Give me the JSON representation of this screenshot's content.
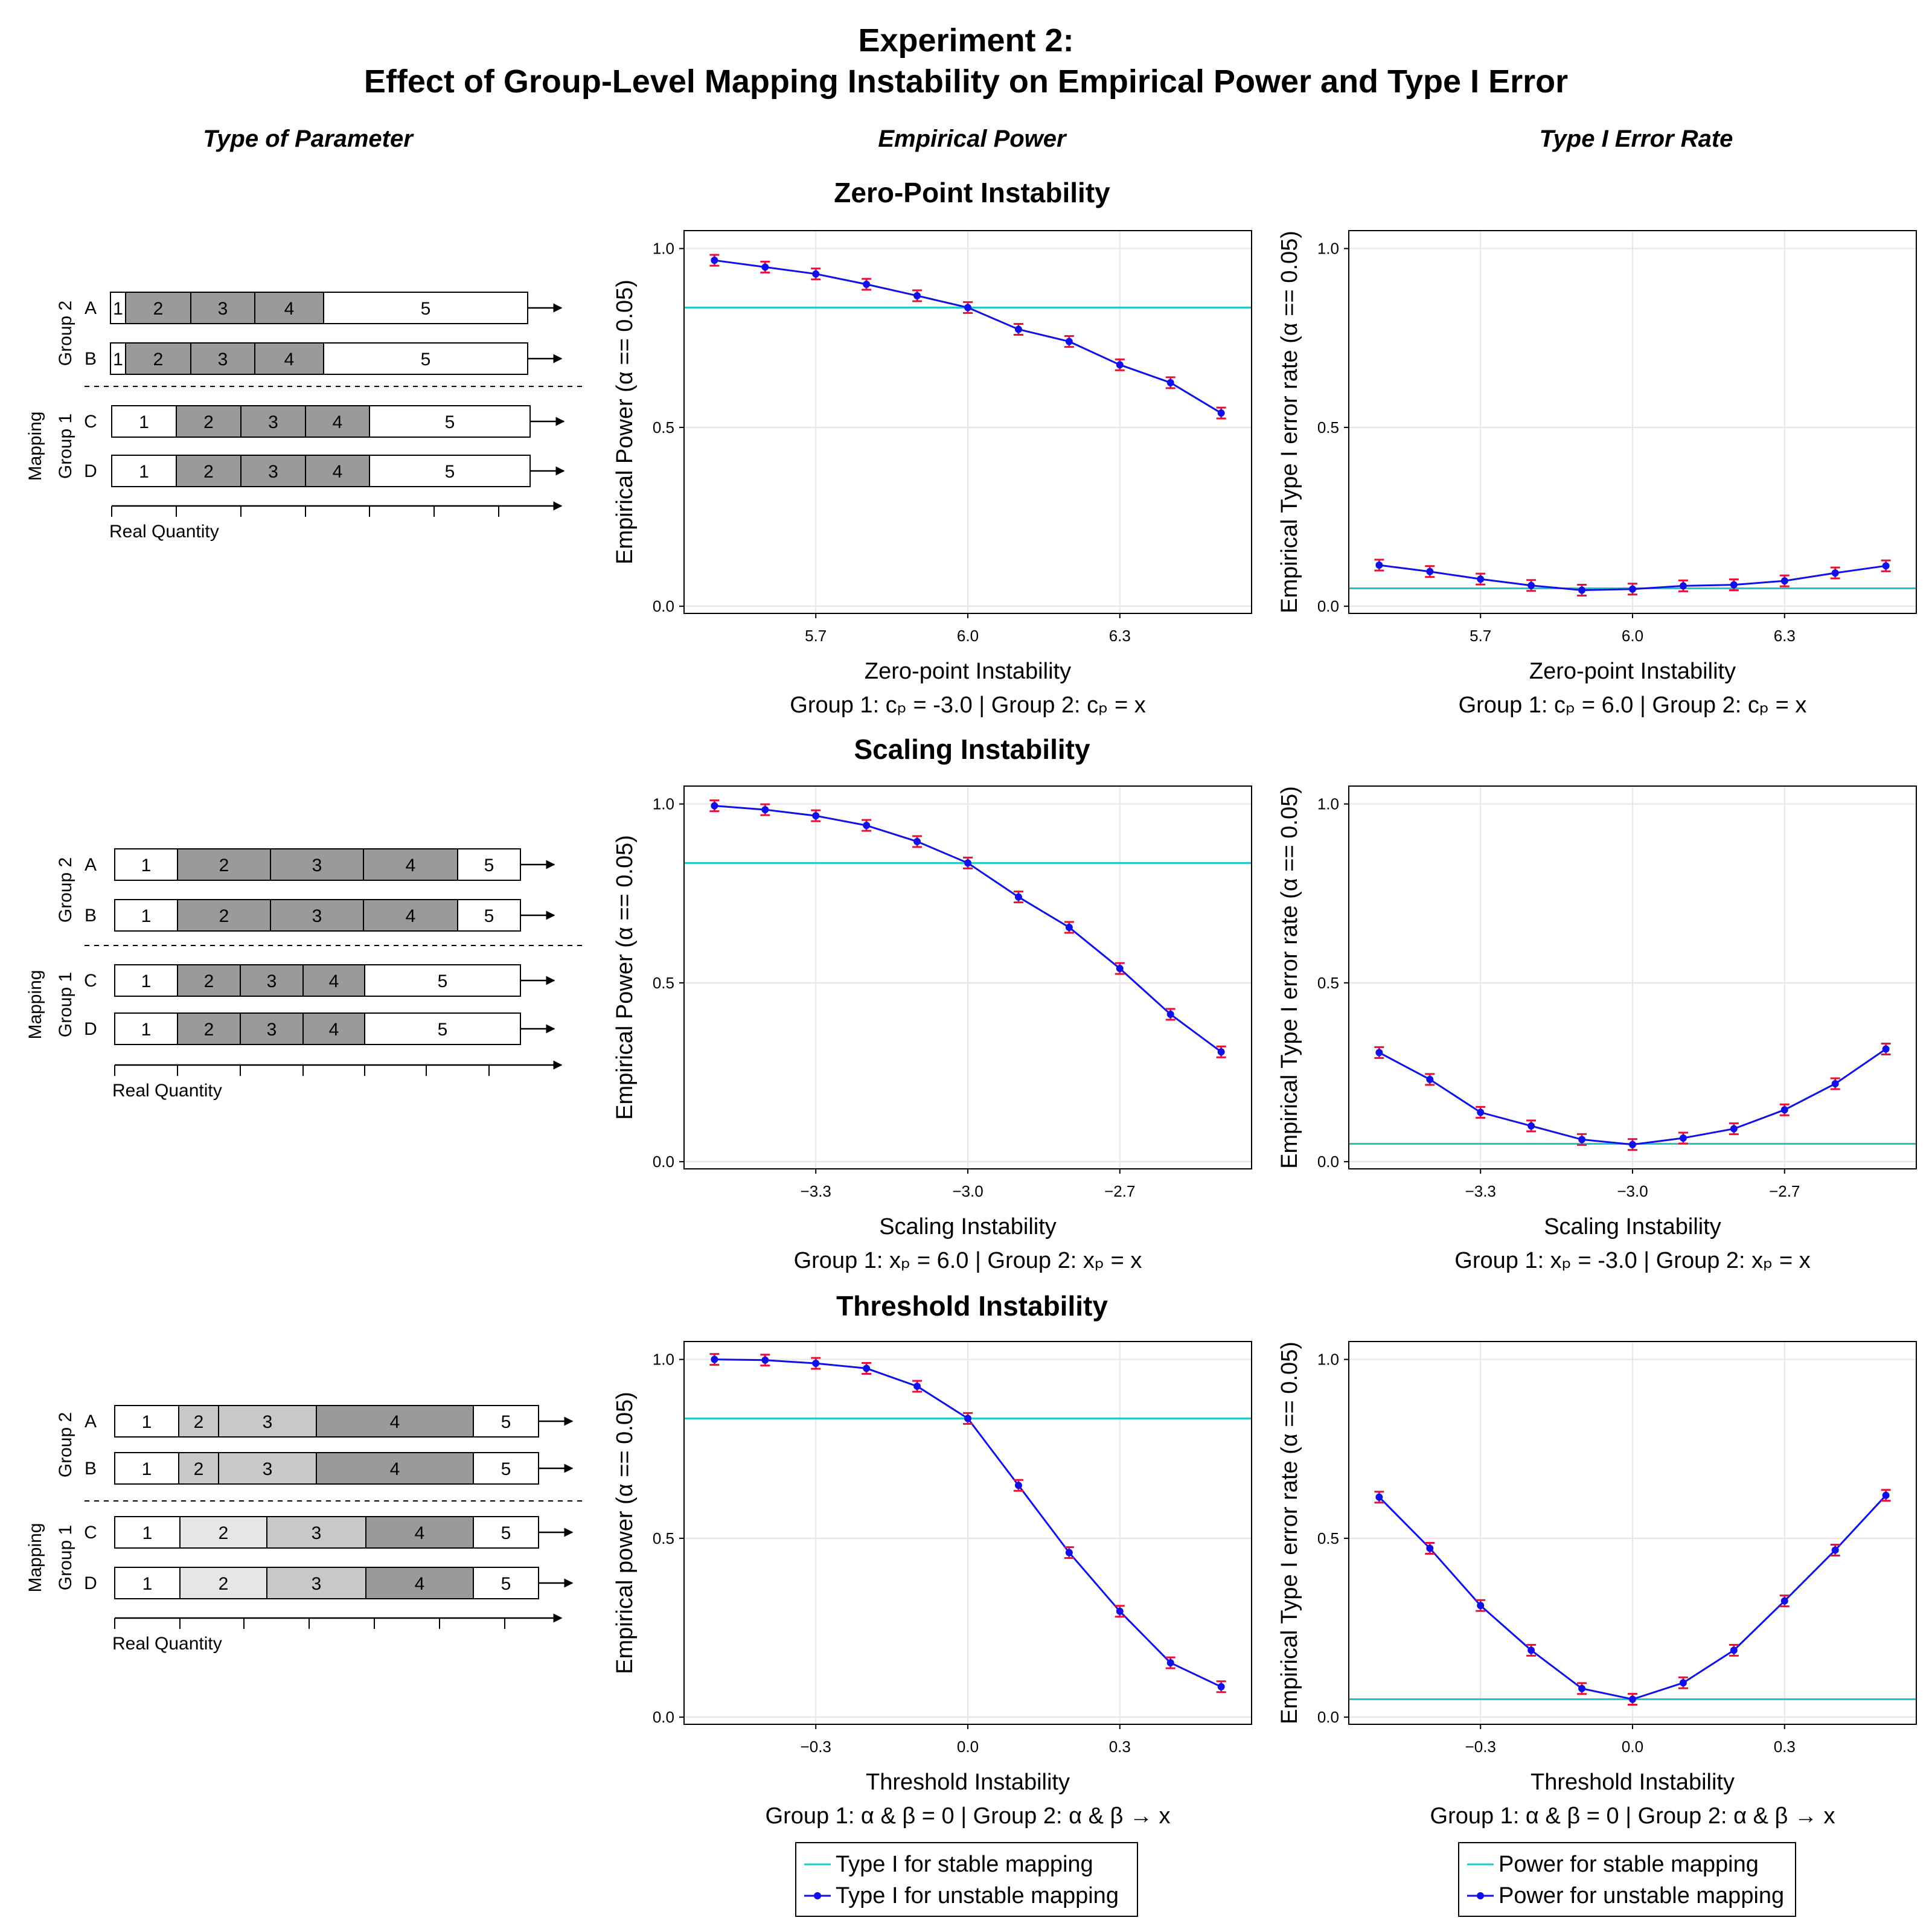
{
  "title": {
    "line1": "Experiment 2:",
    "line2": "Effect of Group-Level Mapping Instability on Empirical Power and Type I Error"
  },
  "column_headers": {
    "type": "Type of Parameter",
    "power": "Empirical Power",
    "type1": "Type I Error Rate"
  },
  "colors": {
    "stable_line": "#1ec8c8",
    "unstable_line": "#1010e8",
    "marker": "#1010e8",
    "errorbar": "#e8103a",
    "dark_category": "#9a9a9a",
    "mid_category": "#c8c8c8",
    "light_category": "#e6e6e6"
  },
  "rows": [
    {
      "row_title": "Zero-Point Instability",
      "diagram": {
        "group_top_label": "Group 2",
        "group_bottom_label": "Mapping\nGroup 1",
        "bar_labels": [
          "A",
          "B",
          "C",
          "D"
        ],
        "axis_label": "Real Quantity",
        "category_numbers": [
          "1",
          "2",
          "3",
          "4",
          "5"
        ]
      },
      "power_axis_label": "Empirical Power (α == 0.05)",
      "power_xlabel": "Zero-point Instability",
      "power_subtitle": "Group 1: cₚ = -3.0 | Group 2: cₚ = x",
      "type1_axis_label": "Empirical Type I error rate (α == 0.05)",
      "type1_xlabel": "Zero-point Instability",
      "type1_subtitle": "Group 1: cₚ = 6.0 | Group 2: cₚ = x"
    },
    {
      "row_title": "Scaling Instability",
      "diagram": {
        "group_top_label": "Group 2",
        "group_bottom_label": "Mapping\nGroup 1",
        "bar_labels": [
          "A",
          "B",
          "C",
          "D"
        ],
        "axis_label": "Real Quantity",
        "category_numbers": [
          "1",
          "2",
          "3",
          "4",
          "5"
        ]
      },
      "power_axis_label": "Empirical Power (α == 0.05)",
      "power_xlabel": "Scaling Instability",
      "power_subtitle": "Group 1: xₚ = 6.0 | Group 2: xₚ = x",
      "type1_axis_label": "Empirical Type I error rate (α == 0.05)",
      "type1_xlabel": "Scaling Instability",
      "type1_subtitle": "Group 1: xₚ = -3.0 | Group 2: xₚ = x"
    },
    {
      "row_title": "Threshold Instability",
      "diagram": {
        "group_top_label": "Group 2",
        "group_bottom_label": "Mapping\nGroup 1",
        "bar_labels": [
          "A",
          "B",
          "C",
          "D"
        ],
        "axis_label": "Real Quantity",
        "category_numbers": [
          "1",
          "2",
          "3",
          "4",
          "5"
        ]
      },
      "power_axis_label": "Empirical power (α == 0.05)",
      "power_xlabel": "Threshold Instability",
      "power_subtitle": "Group 1: α & β = 0 | Group 2: α & β → x",
      "type1_axis_label": "Empirical Type I error rate (α == 0.05)",
      "type1_xlabel": "Threshold Instability",
      "type1_subtitle": "Group 1: α & β = 0 | Group 2: α & β → x"
    }
  ],
  "legends": {
    "power": [
      "Type I for stable mapping",
      "Type I for unstable mapping"
    ],
    "type1": [
      "Power for stable mapping",
      "Power for unstable mapping"
    ]
  },
  "chart_data": [
    {
      "type": "line",
      "panel": "zero-point-power",
      "x": [
        5.5,
        5.6,
        5.7,
        5.8,
        5.9,
        6.0,
        6.1,
        6.2,
        6.3,
        6.4,
        6.5
      ],
      "series": [
        {
          "values": [
            0.967,
            0.948,
            0.929,
            0.9,
            0.868,
            0.835,
            0.774,
            0.74,
            0.675,
            0.625,
            0.54
          ]
        }
      ],
      "reference_line": 0.835,
      "xlim": [
        5.44,
        6.56
      ],
      "ylim": [
        -0.02,
        1.05
      ],
      "xticks": [
        5.7,
        6.0,
        6.3
      ],
      "xtick_labels": [
        "5.7",
        "6.0",
        "6.3"
      ],
      "yticks": [
        0.0,
        0.5,
        1.0
      ],
      "ytick_labels": [
        "0.0",
        "0.5",
        "1.0"
      ],
      "grid": true
    },
    {
      "type": "line",
      "panel": "zero-point-type1",
      "x": [
        5.5,
        5.6,
        5.7,
        5.8,
        5.9,
        6.0,
        6.1,
        6.2,
        6.3,
        6.4,
        6.5
      ],
      "series": [
        {
          "values": [
            0.115,
            0.097,
            0.076,
            0.058,
            0.045,
            0.048,
            0.057,
            0.06,
            0.071,
            0.093,
            0.113
          ]
        }
      ],
      "reference_line": 0.05,
      "xlim": [
        5.44,
        6.56
      ],
      "ylim": [
        -0.02,
        1.05
      ],
      "xticks": [
        5.7,
        6.0,
        6.3
      ],
      "xtick_labels": [
        "5.7",
        "6.0",
        "6.3"
      ],
      "yticks": [
        0.0,
        0.5,
        1.0
      ],
      "ytick_labels": [
        "0.0",
        "0.5",
        "1.0"
      ],
      "grid": true
    },
    {
      "type": "line",
      "panel": "scaling-power",
      "x": [
        -3.5,
        -3.4,
        -3.3,
        -3.2,
        -3.1,
        -3.0,
        -2.9,
        -2.8,
        -2.7,
        -2.6,
        -2.5
      ],
      "series": [
        {
          "values": [
            0.995,
            0.984,
            0.967,
            0.94,
            0.895,
            0.835,
            0.74,
            0.655,
            0.54,
            0.412,
            0.307
          ]
        }
      ],
      "reference_line": 0.835,
      "xlim": [
        -3.56,
        -2.44
      ],
      "ylim": [
        -0.02,
        1.05
      ],
      "xticks": [
        -3.3,
        -3.0,
        -2.7
      ],
      "xtick_labels": [
        "−3.3",
        "−3.0",
        "−2.7"
      ],
      "yticks": [
        0.0,
        0.5,
        1.0
      ],
      "ytick_labels": [
        "0.0",
        "0.5",
        "1.0"
      ],
      "grid": true
    },
    {
      "type": "line",
      "panel": "scaling-type1",
      "x": [
        -3.5,
        -3.4,
        -3.3,
        -3.2,
        -3.1,
        -3.0,
        -2.9,
        -2.8,
        -2.7,
        -2.6,
        -2.5
      ],
      "series": [
        {
          "values": [
            0.305,
            0.23,
            0.138,
            0.1,
            0.062,
            0.048,
            0.066,
            0.092,
            0.145,
            0.218,
            0.315
          ]
        }
      ],
      "reference_line": 0.05,
      "xlim": [
        -3.56,
        -2.44
      ],
      "ylim": [
        -0.02,
        1.05
      ],
      "xticks": [
        -3.3,
        -3.0,
        -2.7
      ],
      "xtick_labels": [
        "−3.3",
        "−3.0",
        "−2.7"
      ],
      "yticks": [
        0.0,
        0.5,
        1.0
      ],
      "ytick_labels": [
        "0.0",
        "0.5",
        "1.0"
      ],
      "grid": true
    },
    {
      "type": "line",
      "panel": "threshold-power",
      "x": [
        -0.5,
        -0.4,
        -0.3,
        -0.2,
        -0.1,
        0.0,
        0.1,
        0.2,
        0.3,
        0.4,
        0.5
      ],
      "series": [
        {
          "values": [
            1.0,
            0.998,
            0.989,
            0.975,
            0.925,
            0.835,
            0.648,
            0.46,
            0.296,
            0.152,
            0.085
          ]
        }
      ],
      "reference_line": 0.835,
      "xlim": [
        -0.56,
        0.56
      ],
      "ylim": [
        -0.02,
        1.05
      ],
      "xticks": [
        -0.3,
        0.0,
        0.3
      ],
      "xtick_labels": [
        "−0.3",
        "0.0",
        "0.3"
      ],
      "yticks": [
        0.0,
        0.5,
        1.0
      ],
      "ytick_labels": [
        "0.0",
        "0.5",
        "1.0"
      ],
      "grid": true
    },
    {
      "type": "line",
      "panel": "threshold-type1",
      "x": [
        -0.5,
        -0.4,
        -0.3,
        -0.2,
        -0.1,
        0.0,
        0.1,
        0.2,
        0.3,
        0.4,
        0.5
      ],
      "series": [
        {
          "values": [
            0.615,
            0.472,
            0.312,
            0.187,
            0.08,
            0.05,
            0.096,
            0.187,
            0.325,
            0.467,
            0.62
          ]
        }
      ],
      "reference_line": 0.05,
      "xlim": [
        -0.56,
        0.56
      ],
      "ylim": [
        -0.02,
        1.05
      ],
      "xticks": [
        -0.3,
        0.0,
        0.3
      ],
      "xtick_labels": [
        "−0.3",
        "0.0",
        "0.3"
      ],
      "yticks": [
        0.0,
        0.5,
        1.0
      ],
      "ytick_labels": [
        "0.0",
        "0.5",
        "1.0"
      ],
      "grid": true
    }
  ]
}
